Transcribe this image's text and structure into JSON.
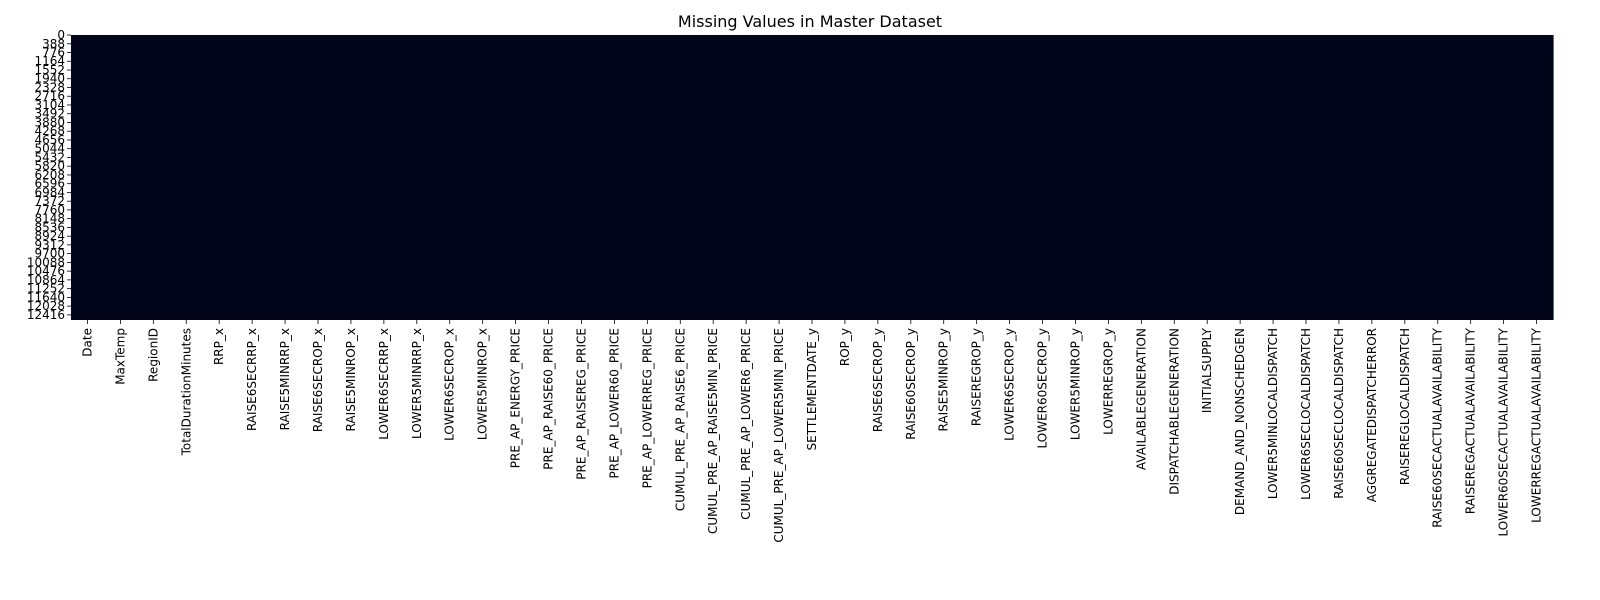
{
  "chart_data": {
    "type": "heatmap",
    "title": "Missing Values in Master Dataset",
    "xlabel": "",
    "ylabel": "",
    "colorbar": false,
    "colors": {
      "present": "#03051a",
      "missing": "#faebdd",
      "background": "#ffffff"
    },
    "rows": 12644,
    "y_tick_labels": [
      "0",
      "388",
      "776",
      "1164",
      "1552",
      "1940",
      "2328",
      "2716",
      "3104",
      "3492",
      "3880",
      "4268",
      "4656",
      "5044",
      "5432",
      "5820",
      "6208",
      "6596",
      "6984",
      "7372",
      "7760",
      "8148",
      "8536",
      "8924",
      "9312",
      "9700",
      "10088",
      "10476",
      "10864",
      "11252",
      "11640",
      "12028",
      "12416"
    ],
    "x_tick_labels": [
      "Date",
      "MaxTemp",
      "RegionID",
      "TotalDurationMinutes",
      "RRP_x",
      "RAISE6SECRRP_x",
      "RAISE5MINRRP_x",
      "RAISE6SECROP_x",
      "RAISE5MINROP_x",
      "LOWER6SECRRP_x",
      "LOWER5MINRRP_x",
      "LOWER6SECROP_x",
      "LOWER5MINROP_x",
      "PRE_AP_ENERGY_PRICE",
      "PRE_AP_RAISE60_PRICE",
      "PRE_AP_RAISEREG_PRICE",
      "PRE_AP_LOWER60_PRICE",
      "PRE_AP_LOWERREG_PRICE",
      "CUMUL_PRE_AP_RAISE6_PRICE",
      "CUMUL_PRE_AP_RAISE5MIN_PRICE",
      "CUMUL_PRE_AP_LOWER6_PRICE",
      "CUMUL_PRE_AP_LOWER5MIN_PRICE",
      "SETTLEMENTDATE_y",
      "ROP_y",
      "RAISE6SECROP_y",
      "RAISE60SECROP_y",
      "RAISE5MINROP_y",
      "RAISEREGROP_y",
      "LOWER6SECROP_y",
      "LOWER60SECROP_y",
      "LOWER5MINROP_y",
      "LOWERREGROP_y",
      "AVAILABLEGENERATION",
      "DISPATCHABLEGENERATION",
      "INITIALSUPPLY",
      "DEMAND_AND_NONSCHEDGEN",
      "LOWER5MINLOCALDISPATCH",
      "LOWER6SECLOCALDISPATCH",
      "RAISE60SECLOCALDISPATCH",
      "AGGREGATEDISPATCHERROR",
      "RAISEREGLOCALDISPATCH",
      "RAISE60SECACTUALAVAILABILITY",
      "RAISEREGACTUALAVAILABILITY",
      "LOWER60SECACTUALAVAILABILITY",
      "LOWERREGACTUALAVAILABILITY"
    ],
    "missing_fraction_by_column": [
      0,
      0,
      0,
      0,
      0,
      0,
      0,
      0,
      0,
      0,
      0,
      0,
      0,
      0,
      0,
      0,
      0,
      0,
      0,
      0,
      0,
      0,
      0,
      0,
      0,
      0,
      0,
      0,
      0,
      0,
      0,
      0,
      0,
      0,
      0,
      0,
      0,
      0,
      0,
      0,
      0,
      0,
      0,
      0,
      0
    ],
    "grid": false,
    "legend": "none"
  }
}
